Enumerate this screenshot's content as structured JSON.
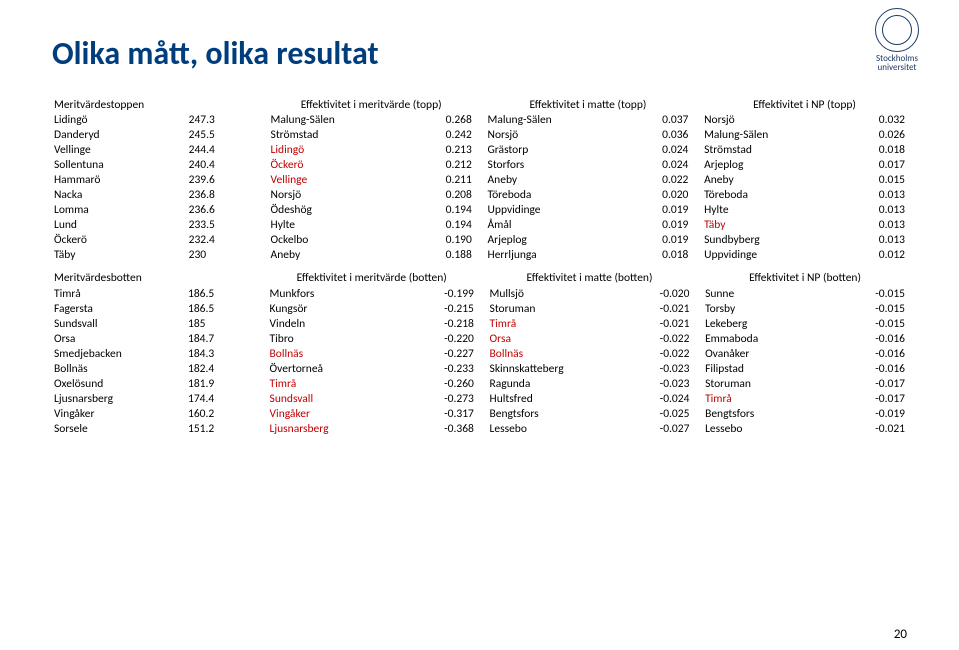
{
  "branding": {
    "uni_line1": "Stockholms",
    "uni_line2": "universitet"
  },
  "title": "Olika mått, olika resultat",
  "page_number": "20",
  "colors": {
    "title": "#003d7d",
    "highlight": "#c00000",
    "text": "#000000",
    "background": "#ffffff"
  },
  "top": {
    "headers": [
      "Meritvärdestoppen",
      "",
      "Effektivitet i meritvärde (topp)",
      "",
      "Effektivitet i matte (topp)",
      "",
      "Effektivitet i NP (topp)",
      ""
    ],
    "rows": [
      {
        "c": [
          {
            "t": "Lidingö"
          },
          {
            "t": "247.3"
          },
          {
            "t": "Malung-Sälen"
          },
          {
            "t": "0.268"
          },
          {
            "t": "Malung-Sälen"
          },
          {
            "t": "0.037"
          },
          {
            "t": "Norsjö"
          },
          {
            "t": "0.032"
          }
        ]
      },
      {
        "c": [
          {
            "t": "Danderyd"
          },
          {
            "t": "245.5"
          },
          {
            "t": "Strömstad"
          },
          {
            "t": "0.242"
          },
          {
            "t": "Norsjö"
          },
          {
            "t": "0.036"
          },
          {
            "t": "Malung-Sälen"
          },
          {
            "t": "0.026"
          }
        ]
      },
      {
        "c": [
          {
            "t": "Vellinge"
          },
          {
            "t": "244.4"
          },
          {
            "t": "Lidingö",
            "r": 1
          },
          {
            "t": "0.213"
          },
          {
            "t": "Grästorp"
          },
          {
            "t": "0.024"
          },
          {
            "t": "Strömstad"
          },
          {
            "t": "0.018"
          }
        ]
      },
      {
        "c": [
          {
            "t": "Sollentuna"
          },
          {
            "t": "240.4"
          },
          {
            "t": "Öckerö",
            "r": 1
          },
          {
            "t": "0.212"
          },
          {
            "t": "Storfors"
          },
          {
            "t": "0.024"
          },
          {
            "t": "Arjeplog"
          },
          {
            "t": "0.017"
          }
        ]
      },
      {
        "c": [
          {
            "t": "Hammarö"
          },
          {
            "t": "239.6"
          },
          {
            "t": "Vellinge",
            "r": 1
          },
          {
            "t": "0.211"
          },
          {
            "t": "Aneby"
          },
          {
            "t": "0.022"
          },
          {
            "t": "Aneby"
          },
          {
            "t": "0.015"
          }
        ]
      },
      {
        "c": [
          {
            "t": "Nacka"
          },
          {
            "t": "236.8"
          },
          {
            "t": "Norsjö"
          },
          {
            "t": "0.208"
          },
          {
            "t": "Töreboda"
          },
          {
            "t": "0.020"
          },
          {
            "t": "Töreboda"
          },
          {
            "t": "0.013"
          }
        ]
      },
      {
        "c": [
          {
            "t": "Lomma"
          },
          {
            "t": "236.6"
          },
          {
            "t": "Ödeshög"
          },
          {
            "t": "0.194"
          },
          {
            "t": "Uppvidinge"
          },
          {
            "t": "0.019"
          },
          {
            "t": "Hylte"
          },
          {
            "t": "0.013"
          }
        ]
      },
      {
        "c": [
          {
            "t": "Lund"
          },
          {
            "t": "233.5"
          },
          {
            "t": "Hylte"
          },
          {
            "t": "0.194"
          },
          {
            "t": "Åmål"
          },
          {
            "t": "0.019"
          },
          {
            "t": "Täby",
            "r": 1
          },
          {
            "t": "0.013"
          }
        ]
      },
      {
        "c": [
          {
            "t": "Öckerö"
          },
          {
            "t": "232.4"
          },
          {
            "t": "Ockelbo"
          },
          {
            "t": "0.190"
          },
          {
            "t": "Arjeplog"
          },
          {
            "t": "0.019"
          },
          {
            "t": "Sundbyberg"
          },
          {
            "t": "0.013"
          }
        ]
      },
      {
        "c": [
          {
            "t": "Täby"
          },
          {
            "t": "230"
          },
          {
            "t": "Aneby"
          },
          {
            "t": "0.188"
          },
          {
            "t": "Herrljunga"
          },
          {
            "t": "0.018"
          },
          {
            "t": "Uppvidinge"
          },
          {
            "t": "0.012"
          }
        ]
      }
    ]
  },
  "bottom": {
    "headers": [
      "Meritvärdesbotten",
      "",
      "Effektivitet i meritvärde (botten)",
      "",
      "Effektivitet i matte (botten)",
      "",
      "Effektivitet i NP (botten)",
      ""
    ],
    "rows": [
      {
        "c": [
          {
            "t": "Timrå"
          },
          {
            "t": "186.5"
          },
          {
            "t": "Munkfors"
          },
          {
            "t": "-0.199"
          },
          {
            "t": "Mullsjö"
          },
          {
            "t": "-0.020"
          },
          {
            "t": "Sunne"
          },
          {
            "t": "-0.015"
          }
        ]
      },
      {
        "c": [
          {
            "t": "Fagersta"
          },
          {
            "t": "186.5"
          },
          {
            "t": "Kungsör"
          },
          {
            "t": "-0.215"
          },
          {
            "t": "Storuman"
          },
          {
            "t": "-0.021"
          },
          {
            "t": "Torsby"
          },
          {
            "t": "-0.015"
          }
        ]
      },
      {
        "c": [
          {
            "t": "Sundsvall"
          },
          {
            "t": "185"
          },
          {
            "t": "Vindeln"
          },
          {
            "t": "-0.218"
          },
          {
            "t": "Timrå",
            "r": 1
          },
          {
            "t": "-0.021"
          },
          {
            "t": "Lekeberg"
          },
          {
            "t": "-0.015"
          }
        ]
      },
      {
        "c": [
          {
            "t": "Orsa"
          },
          {
            "t": "184.7"
          },
          {
            "t": "Tibro"
          },
          {
            "t": "-0.220"
          },
          {
            "t": "Orsa",
            "r": 1
          },
          {
            "t": "-0.022"
          },
          {
            "t": "Emmaboda"
          },
          {
            "t": "-0.016"
          }
        ]
      },
      {
        "c": [
          {
            "t": "Smedjebacken"
          },
          {
            "t": "184.3"
          },
          {
            "t": "Bollnäs",
            "r": 1
          },
          {
            "t": "-0.227"
          },
          {
            "t": "Bollnäs",
            "r": 1
          },
          {
            "t": "-0.022"
          },
          {
            "t": "Ovanåker"
          },
          {
            "t": "-0.016"
          }
        ]
      },
      {
        "c": [
          {
            "t": "Bollnäs"
          },
          {
            "t": "182.4"
          },
          {
            "t": "Övertorneå"
          },
          {
            "t": "-0.233"
          },
          {
            "t": "Skinnskatteberg"
          },
          {
            "t": "-0.023"
          },
          {
            "t": "Filipstad"
          },
          {
            "t": "-0.016"
          }
        ]
      },
      {
        "c": [
          {
            "t": "Oxelösund"
          },
          {
            "t": "181.9"
          },
          {
            "t": "Timrå",
            "r": 1
          },
          {
            "t": "-0.260"
          },
          {
            "t": "Ragunda"
          },
          {
            "t": "-0.023"
          },
          {
            "t": "Storuman"
          },
          {
            "t": "-0.017"
          }
        ]
      },
      {
        "c": [
          {
            "t": "Ljusnarsberg"
          },
          {
            "t": "174.4"
          },
          {
            "t": "Sundsvall",
            "r": 1
          },
          {
            "t": "-0.273"
          },
          {
            "t": "Hultsfred"
          },
          {
            "t": "-0.024"
          },
          {
            "t": "Timrå",
            "r": 1
          },
          {
            "t": "-0.017"
          }
        ]
      },
      {
        "c": [
          {
            "t": "Vingåker"
          },
          {
            "t": "160.2"
          },
          {
            "t": "Vingåker",
            "r": 1
          },
          {
            "t": "-0.317"
          },
          {
            "t": "Bengtsfors"
          },
          {
            "t": "-0.025"
          },
          {
            "t": "Bengtsfors"
          },
          {
            "t": "-0.019"
          }
        ]
      },
      {
        "c": [
          {
            "t": "Sorsele"
          },
          {
            "t": "151.2"
          },
          {
            "t": "Ljusnarsberg",
            "r": 1
          },
          {
            "t": "-0.368"
          },
          {
            "t": "Lessebo"
          },
          {
            "t": "-0.027"
          },
          {
            "t": "Lessebo"
          },
          {
            "t": "-0.021"
          }
        ]
      }
    ]
  }
}
